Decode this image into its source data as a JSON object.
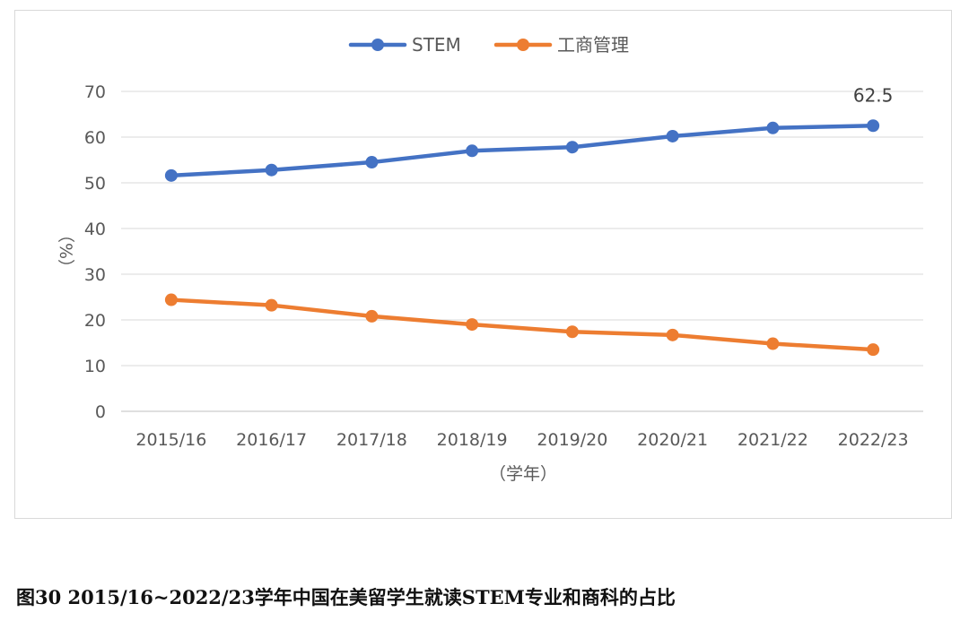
{
  "chart_data": {
    "type": "line",
    "title": "",
    "xlabel": "（学年）",
    "ylabel": "（%）",
    "categories": [
      "2015/16",
      "2016/17",
      "2017/18",
      "2018/19",
      "2019/20",
      "2020/21",
      "2021/22",
      "2022/23"
    ],
    "ylim": [
      0,
      70
    ],
    "yticks": [
      0,
      10,
      20,
      30,
      40,
      50,
      60,
      70
    ],
    "grid": true,
    "legend_position": "top-center",
    "series": [
      {
        "name": "STEM",
        "color": "#4472C4",
        "values": [
          51.6,
          52.8,
          54.5,
          57.0,
          57.8,
          60.2,
          62.0,
          62.5
        ],
        "data_labels": [
          "",
          "",
          "",
          "",
          "",
          "",
          "",
          "62.5"
        ]
      },
      {
        "name": "工商管理",
        "color": "#ED7D31",
        "values": [
          24.4,
          23.2,
          20.8,
          19.0,
          17.4,
          16.7,
          14.8,
          13.5
        ],
        "data_labels": [
          "",
          "",
          "",
          "",
          "",
          "",
          "",
          ""
        ]
      }
    ]
  },
  "caption": "图30  2015/16~2022/23学年中国在美留学生就读STEM专业和商科的占比"
}
